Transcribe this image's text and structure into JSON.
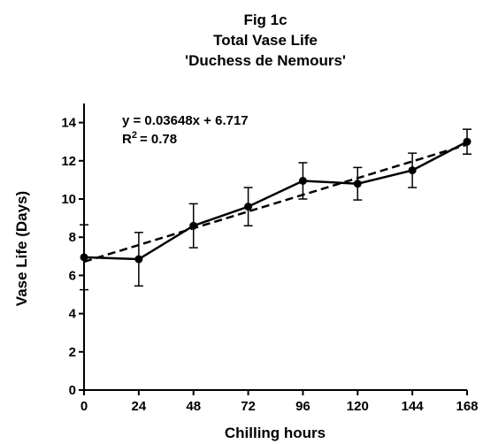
{
  "chart_data": {
    "type": "line",
    "title_lines": [
      "Fig 1c",
      "Total Vase Life",
      "'Duchess de Nemours'"
    ],
    "xlabel": "Chilling hours",
    "ylabel": "Vase Life (Days)",
    "xlim": [
      0,
      168
    ],
    "ylim": [
      0,
      15
    ],
    "x_ticks": [
      0,
      24,
      48,
      72,
      96,
      120,
      144,
      168
    ],
    "y_ticks": [
      0,
      2,
      4,
      6,
      8,
      10,
      12,
      14
    ],
    "grid": false,
    "series": [
      {
        "x": [
          0,
          24,
          48,
          72,
          96,
          120,
          144,
          168
        ],
        "y": [
          6.95,
          6.85,
          8.6,
          9.6,
          10.95,
          10.8,
          11.5,
          13.0
        ],
        "yerr": [
          1.7,
          1.4,
          1.15,
          1.0,
          0.95,
          0.85,
          0.9,
          0.65
        ]
      }
    ],
    "fit": {
      "slope": 0.03648,
      "intercept": 6.717,
      "equation_text": "y = 0.03648x + 6.717",
      "r2_prefix": "R",
      "r2_sup": "2",
      "r2_value": "=  0.78"
    }
  }
}
